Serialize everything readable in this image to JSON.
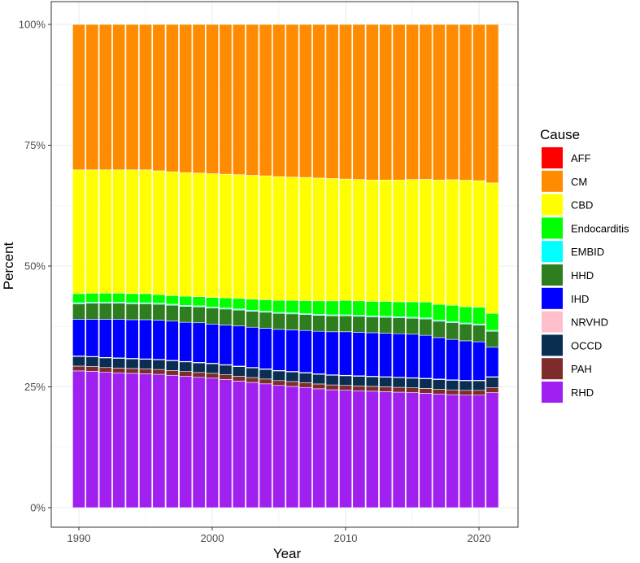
{
  "chart_data": {
    "type": "bar",
    "stacked": "percent",
    "title": "",
    "xlabel": "Year",
    "ylabel": "Percent",
    "x": [
      1990,
      1991,
      1992,
      1993,
      1994,
      1995,
      1996,
      1997,
      1998,
      1999,
      2000,
      2001,
      2002,
      2003,
      2004,
      2005,
      2006,
      2007,
      2008,
      2009,
      2010,
      2011,
      2012,
      2013,
      2014,
      2015,
      2016,
      2017,
      2018,
      2019,
      2020,
      2021
    ],
    "x_ticks": [
      "1990",
      "2000",
      "2010",
      "2020"
    ],
    "y_ticks": [
      "0%",
      "25%",
      "50%",
      "75%",
      "100%"
    ],
    "ylim": [
      0,
      100
    ],
    "grid": true,
    "legend": {
      "title": "Cause",
      "position": "right"
    },
    "series": [
      {
        "name": "RHD",
        "color": "#A020F0",
        "values": [
          28.3,
          28.2,
          28.0,
          27.9,
          27.8,
          27.7,
          27.6,
          27.4,
          27.2,
          27.0,
          26.8,
          26.5,
          26.2,
          25.9,
          25.6,
          25.3,
          25.1,
          24.9,
          24.6,
          24.4,
          24.3,
          24.2,
          24.1,
          24.0,
          23.9,
          23.8,
          23.7,
          23.6,
          23.5,
          23.4,
          23.4,
          23.8
        ]
      },
      {
        "name": "PAH",
        "color": "#7D2B2B",
        "values": [
          1.0,
          1.0,
          1.0,
          1.0,
          1.0,
          1.0,
          1.0,
          1.0,
          1.0,
          1.0,
          1.0,
          1.0,
          1.0,
          1.0,
          1.0,
          1.0,
          1.0,
          1.0,
          1.0,
          1.0,
          1.0,
          1.0,
          1.0,
          1.0,
          1.0,
          1.0,
          1.0,
          1.0,
          1.0,
          1.0,
          1.0,
          1.0
        ]
      },
      {
        "name": "OCCD",
        "color": "#0A2E52",
        "values": [
          2.0,
          2.0,
          2.0,
          2.0,
          2.0,
          2.0,
          2.0,
          2.0,
          2.0,
          2.0,
          2.0,
          2.0,
          2.0,
          2.0,
          2.0,
          2.0,
          2.0,
          2.0,
          2.0,
          2.0,
          2.0,
          2.0,
          2.0,
          2.0,
          2.0,
          2.0,
          2.0,
          2.0,
          2.0,
          2.0,
          2.0,
          2.2
        ]
      },
      {
        "name": "NRVHD",
        "color": "#FFC0CB",
        "values": [
          0.1,
          0.1,
          0.1,
          0.1,
          0.1,
          0.1,
          0.1,
          0.1,
          0.1,
          0.1,
          0.1,
          0.1,
          0.1,
          0.1,
          0.1,
          0.1,
          0.1,
          0.1,
          0.1,
          0.1,
          0.1,
          0.1,
          0.1,
          0.1,
          0.1,
          0.1,
          0.1,
          0.1,
          0.1,
          0.1,
          0.1,
          0.1
        ]
      },
      {
        "name": "IHD",
        "color": "#0000FF",
        "values": [
          7.6,
          7.7,
          7.9,
          8.0,
          8.0,
          8.1,
          8.1,
          8.1,
          8.1,
          8.2,
          8.1,
          8.2,
          8.3,
          8.3,
          8.4,
          8.5,
          8.6,
          8.7,
          8.8,
          8.9,
          9.0,
          9.0,
          9.0,
          9.0,
          9.0,
          9.0,
          8.9,
          8.6,
          8.4,
          8.2,
          8.0,
          6.1
        ]
      },
      {
        "name": "HHD",
        "color": "#2E7D1E",
        "values": [
          3.2,
          3.3,
          3.3,
          3.3,
          3.3,
          3.3,
          3.3,
          3.3,
          3.3,
          3.3,
          3.3,
          3.3,
          3.3,
          3.3,
          3.3,
          3.3,
          3.3,
          3.3,
          3.3,
          3.3,
          3.3,
          3.3,
          3.3,
          3.3,
          3.3,
          3.3,
          3.4,
          3.4,
          3.5,
          3.5,
          3.5,
          3.3
        ]
      },
      {
        "name": "EMBID",
        "color": "#00FFFF",
        "values": [
          0.2,
          0.2,
          0.2,
          0.2,
          0.2,
          0.2,
          0.2,
          0.2,
          0.2,
          0.2,
          0.2,
          0.2,
          0.2,
          0.2,
          0.2,
          0.2,
          0.2,
          0.2,
          0.2,
          0.2,
          0.2,
          0.2,
          0.2,
          0.2,
          0.2,
          0.2,
          0.2,
          0.2,
          0.2,
          0.2,
          0.2,
          0.2
        ]
      },
      {
        "name": "Endocarditis",
        "color": "#00FF00",
        "values": [
          1.9,
          1.9,
          1.9,
          1.9,
          1.9,
          1.9,
          1.8,
          1.8,
          1.9,
          1.9,
          2.0,
          2.1,
          2.2,
          2.3,
          2.4,
          2.5,
          2.6,
          2.7,
          2.8,
          2.9,
          3.0,
          3.0,
          3.0,
          3.1,
          3.1,
          3.2,
          3.3,
          3.3,
          3.4,
          3.4,
          3.5,
          3.5
        ]
      },
      {
        "name": "CBD",
        "color": "#FFFF00",
        "values": [
          25.6,
          25.5,
          25.5,
          25.5,
          25.6,
          25.6,
          25.6,
          25.6,
          25.6,
          25.6,
          25.6,
          25.6,
          25.6,
          25.6,
          25.6,
          25.6,
          25.5,
          25.5,
          25.4,
          25.3,
          25.1,
          25.1,
          25.1,
          25.1,
          25.2,
          25.3,
          25.4,
          25.8,
          26.1,
          26.3,
          26.3,
          27.0
        ]
      },
      {
        "name": "CM",
        "color": "#FF8C00",
        "values": [
          30.1,
          30.1,
          30.1,
          30.1,
          30.1,
          30.1,
          30.3,
          30.5,
          30.7,
          30.8,
          30.9,
          31.0,
          31.1,
          31.2,
          31.3,
          31.5,
          31.6,
          31.7,
          31.8,
          31.9,
          32.0,
          32.1,
          32.2,
          32.2,
          32.2,
          32.1,
          32.1,
          32.3,
          32.3,
          32.4,
          32.5,
          32.8
        ]
      },
      {
        "name": "AFF",
        "color": "#FF0000",
        "values": [
          0.0,
          0.0,
          0.0,
          0.0,
          0.0,
          0.0,
          0.0,
          0.0,
          0.0,
          0.0,
          0.0,
          0.0,
          0.0,
          0.0,
          0.0,
          0.0,
          0.0,
          0.0,
          0.0,
          0.0,
          0.0,
          0.0,
          0.0,
          0.0,
          0.0,
          0.0,
          0.0,
          0.0,
          0.0,
          0.0,
          0.0,
          0.0
        ]
      }
    ],
    "legend_order": [
      "AFF",
      "CM",
      "CBD",
      "Endocarditis",
      "EMBID",
      "HHD",
      "IHD",
      "NRVHD",
      "OCCD",
      "PAH",
      "RHD"
    ]
  }
}
